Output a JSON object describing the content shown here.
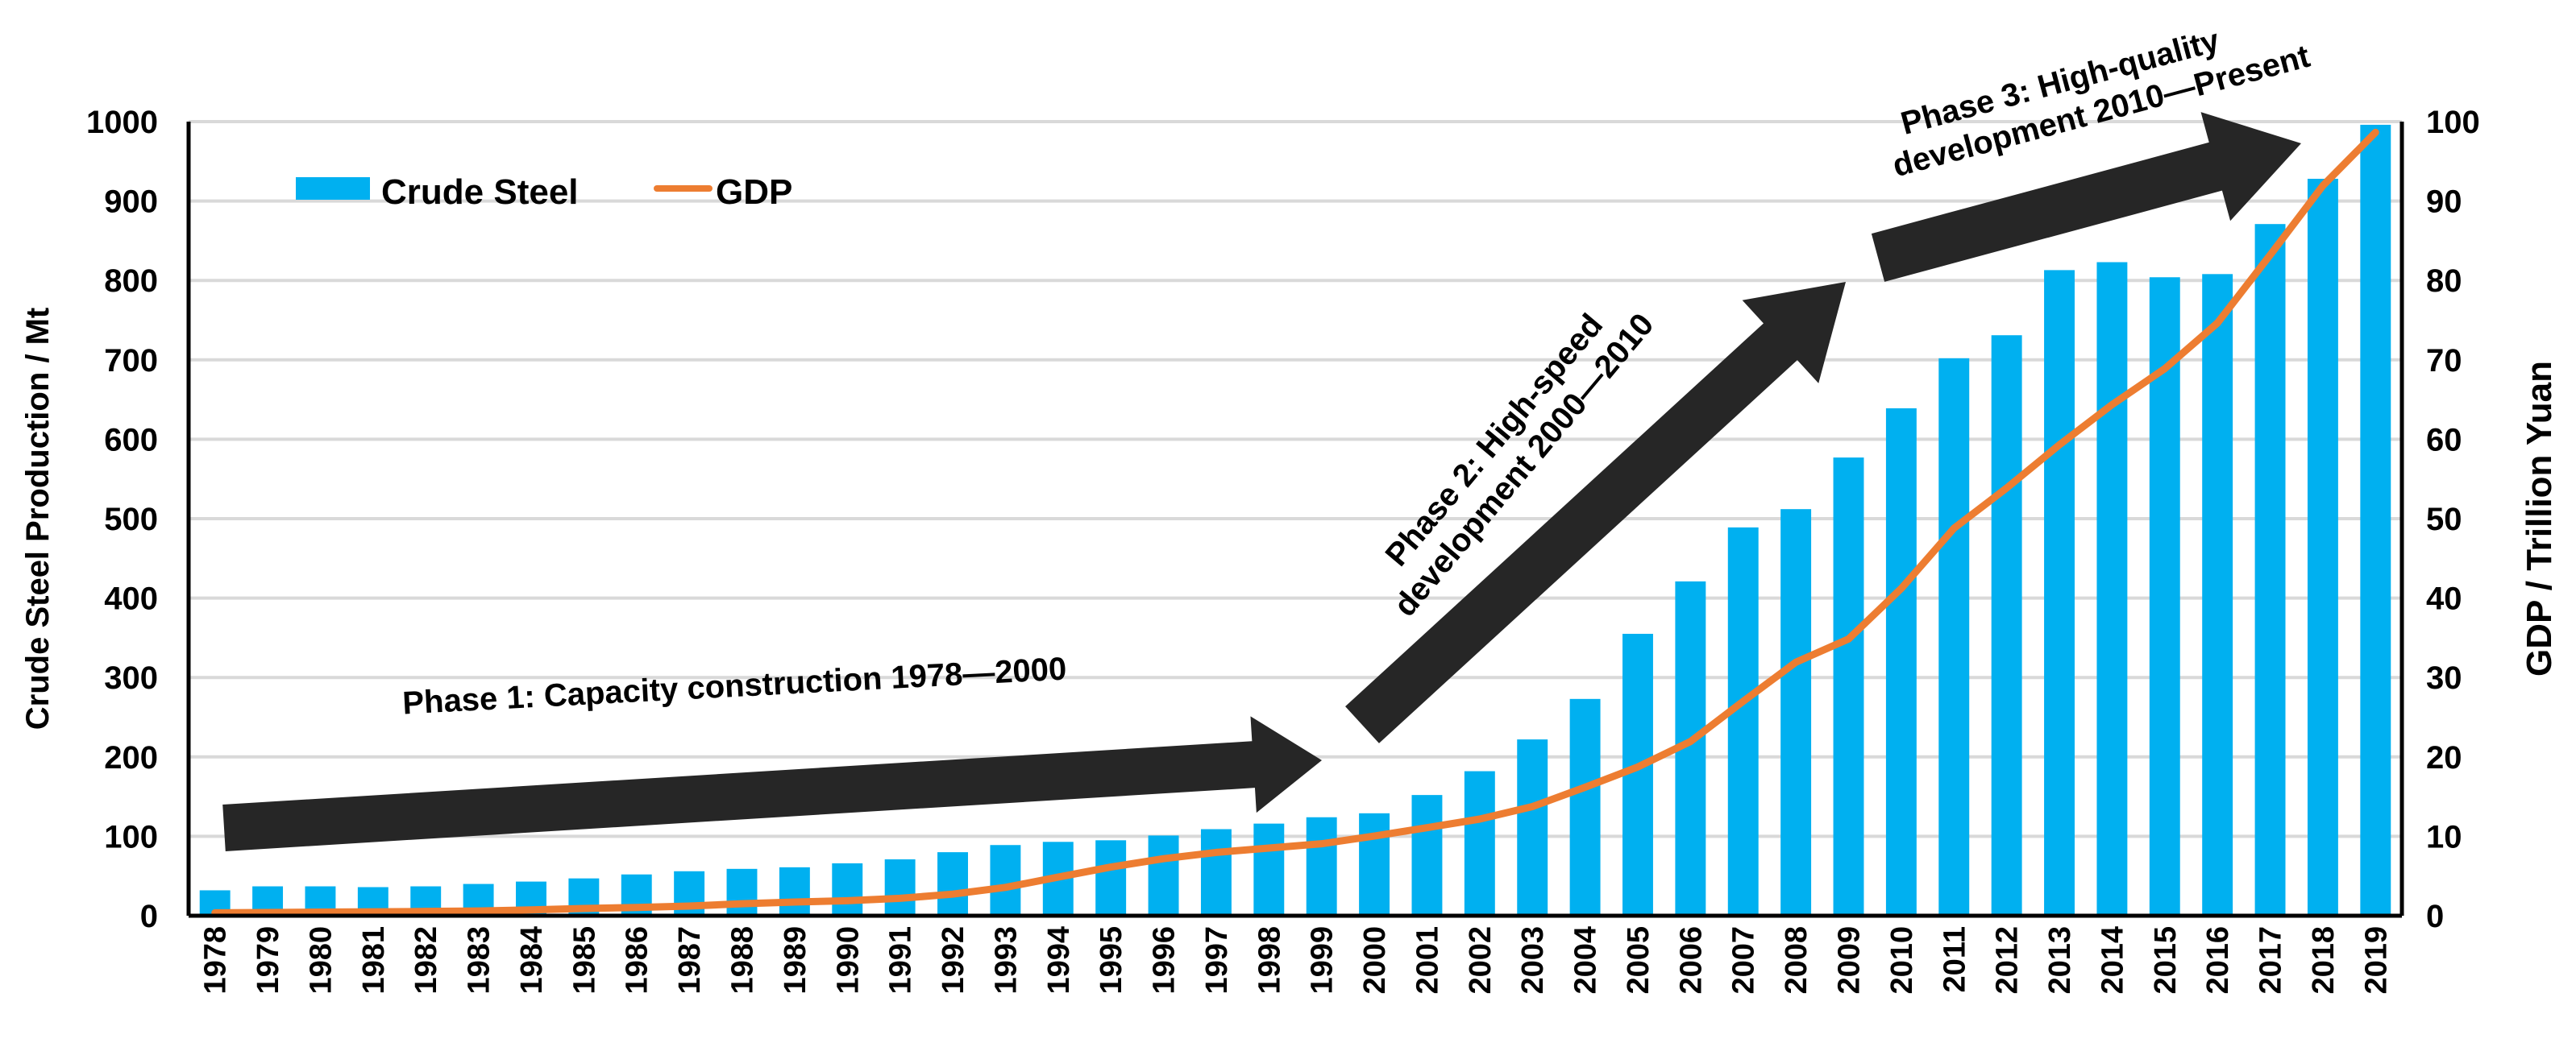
{
  "chart_data": {
    "type": "bar+line",
    "categories": [
      "1978",
      "1979",
      "1980",
      "1981",
      "1982",
      "1983",
      "1984",
      "1985",
      "1986",
      "1987",
      "1988",
      "1989",
      "1990",
      "1991",
      "1992",
      "1993",
      "1994",
      "1995",
      "1996",
      "1997",
      "1998",
      "1999",
      "2000",
      "2001",
      "2002",
      "2003",
      "2004",
      "2005",
      "2006",
      "2007",
      "2008",
      "2009",
      "2010",
      "2011",
      "2012",
      "2013",
      "2014",
      "2015",
      "2016",
      "2017",
      "2018",
      "2019"
    ],
    "series": [
      {
        "name": "Crude Steel",
        "type": "bar",
        "axis": "left",
        "color": "#00B0F0",
        "values": [
          32,
          37,
          37,
          36,
          37,
          40,
          43,
          47,
          52,
          56,
          59,
          61,
          66,
          71,
          80,
          89,
          93,
          95,
          101,
          109,
          116,
          124,
          129,
          152,
          182,
          222,
          273,
          355,
          421,
          489,
          512,
          577,
          639,
          702,
          731,
          813,
          823,
          804,
          808,
          871,
          928,
          996
        ]
      },
      {
        "name": "GDP",
        "type": "line",
        "axis": "right",
        "color": "#ED7D31",
        "values": [
          0.37,
          0.41,
          0.46,
          0.49,
          0.54,
          0.6,
          0.73,
          0.91,
          1.04,
          1.22,
          1.51,
          1.72,
          1.89,
          2.19,
          2.72,
          3.57,
          4.86,
          6.13,
          7.18,
          7.97,
          8.52,
          9.06,
          10.03,
          11.09,
          12.17,
          13.74,
          16.18,
          18.73,
          21.94,
          27.0,
          31.92,
          34.85,
          41.21,
          48.79,
          53.86,
          59.3,
          64.36,
          68.89,
          74.64,
          83.2,
          91.93,
          98.65
        ]
      }
    ],
    "ylabel": "Crude Steel Production / Mt",
    "ylabel_right": "GDP / Trillion Yuan",
    "ylim": [
      0,
      1000
    ],
    "ylim_right": [
      0,
      100
    ],
    "yticks": [
      "0",
      "100",
      "200",
      "300",
      "400",
      "500",
      "600",
      "700",
      "800",
      "900",
      "1000"
    ],
    "yticks_right": [
      "0",
      "10",
      "20",
      "30",
      "40",
      "50",
      "60",
      "70",
      "80",
      "90",
      "100"
    ],
    "grid": true,
    "legend_position": "top-left",
    "annotations": [
      {
        "lines": [
          "Phase 1: Capacity construction 1978—2000"
        ]
      },
      {
        "lines": [
          "Phase 2: High-speed",
          "development 2000—2010"
        ]
      },
      {
        "lines": [
          "Phase 3: High-quality",
          "development 2010—Present"
        ]
      }
    ],
    "arrow_color": "#262626",
    "grid_color": "#D9D9D9"
  }
}
